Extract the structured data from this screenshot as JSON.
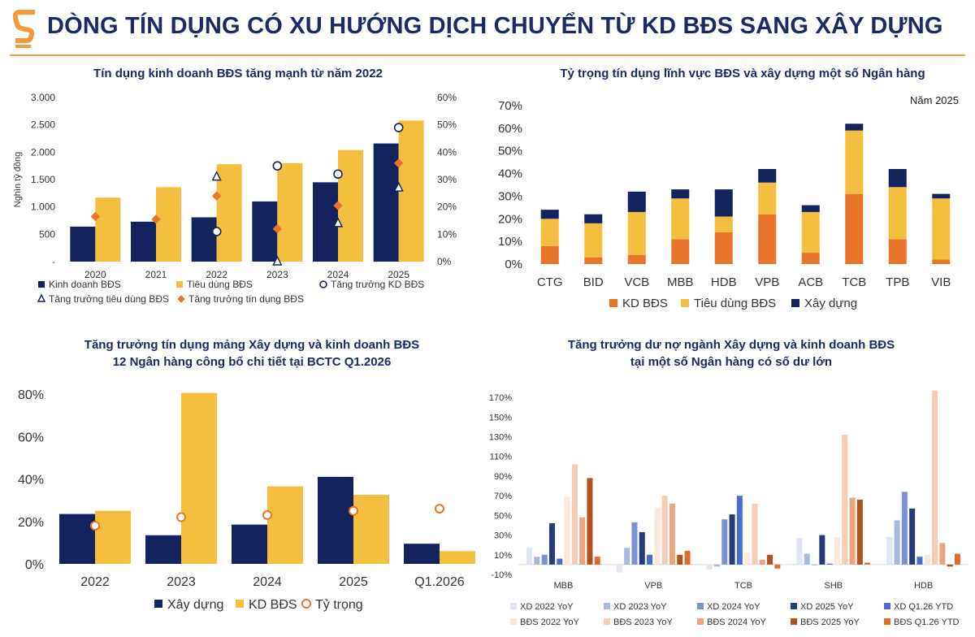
{
  "page": {
    "title": "DÒNG TÍN DỤNG CÓ XU HƯỚNG DỊCH CHUYỂN TỪ KD BĐS SANG XÂY DỰNG"
  },
  "colors": {
    "navy": "#13235e",
    "yellow": "#f4bf3f",
    "orange": "#e8742b",
    "accent": "#f39a3c"
  },
  "chart_data": [
    {
      "id": "c1",
      "type": "bar",
      "title": "Tín dụng kinh doanh BĐS tăng mạnh từ năm 2022",
      "ylabel": "Nghìn tỷ đồng",
      "categories": [
        "2020",
        "2021",
        "2022",
        "2023",
        "2024",
        "2025"
      ],
      "ylim": [
        0,
        3000
      ],
      "y_ticks": [
        "-",
        "500",
        "1.000",
        "1.500",
        "2.000",
        "2.500",
        "3.000"
      ],
      "y2lim": [
        0,
        60
      ],
      "y2_ticks": [
        "0%",
        "10%",
        "20%",
        "30%",
        "40%",
        "50%",
        "60%"
      ],
      "series": [
        {
          "name": "Kinh doanh BĐS",
          "kind": "bar",
          "axis": "left",
          "color": "#13235e",
          "values": [
            640,
            730,
            810,
            1100,
            1450,
            2160
          ]
        },
        {
          "name": "Tiêu dùng BĐS",
          "kind": "bar",
          "axis": "left",
          "color": "#f4bf3f",
          "values": [
            1170,
            1360,
            1780,
            1800,
            2040,
            2580
          ]
        },
        {
          "name": "Tăng trưởng KD BĐS",
          "kind": "marker",
          "shape": "circle",
          "axis": "right",
          "values": [
            null,
            null,
            11,
            35,
            32,
            49
          ]
        },
        {
          "name": "Tăng trưởng tiêu dùng BĐS",
          "kind": "marker",
          "shape": "triangle",
          "axis": "right",
          "values": [
            null,
            null,
            31,
            0,
            14,
            27
          ]
        },
        {
          "name": "Tăng trưởng tín dụng BĐS",
          "kind": "marker",
          "shape": "diamond",
          "axis": "right",
          "color": "#e8742b",
          "values": [
            16.5,
            15.5,
            24,
            12,
            20.5,
            36
          ]
        }
      ],
      "legend_position": "bottom"
    },
    {
      "id": "c2",
      "type": "bar",
      "stacked": true,
      "title": "Tỷ trọng tín dụng lĩnh vực BĐS và xây dựng một số Ngân hàng",
      "annotation": "Năm 2025",
      "categories": [
        "CTG",
        "BID",
        "VCB",
        "MBB",
        "HDB",
        "VPB",
        "ACB",
        "TCB",
        "TPB",
        "VIB"
      ],
      "ylim": [
        0,
        70
      ],
      "y_ticks": [
        "0%",
        "10%",
        "20%",
        "30%",
        "40%",
        "50%",
        "60%",
        "70%"
      ],
      "series": [
        {
          "name": "KD BĐS",
          "color": "#e8742b",
          "values": [
            8,
            3,
            4,
            11,
            14,
            22,
            5,
            31,
            11,
            2
          ]
        },
        {
          "name": "Tiêu dùng BĐS",
          "color": "#f4bf3f",
          "values": [
            12,
            15,
            19,
            18,
            7,
            14,
            18,
            28,
            23,
            27
          ]
        },
        {
          "name": "Xây dựng",
          "color": "#13235e",
          "values": [
            4,
            4,
            9,
            4,
            12,
            6,
            3,
            3,
            8,
            2
          ]
        }
      ],
      "legend_position": "bottom"
    },
    {
      "id": "c3",
      "type": "bar",
      "title": "Tăng trưởng tín dụng mảng Xây dựng và kinh doanh BĐS",
      "subtitle": "12 Ngân hàng công bố chi tiết tại BCTC Q1.2026",
      "categories": [
        "2022",
        "2023",
        "2024",
        "2025",
        "Q1.2026"
      ],
      "ylim": [
        0,
        80
      ],
      "y_ticks": [
        "0%",
        "20%",
        "40%",
        "60%",
        "80%"
      ],
      "series": [
        {
          "name": "Xây dựng",
          "kind": "bar",
          "color": "#13235e",
          "values": [
            23.5,
            13.5,
            18.5,
            41,
            9.5
          ]
        },
        {
          "name": "KD BĐS",
          "kind": "bar",
          "color": "#f4bf3f",
          "values": [
            25,
            80.5,
            36.5,
            32.5,
            6
          ]
        },
        {
          "name": "Tỷ trọng",
          "kind": "marker",
          "shape": "circle",
          "color": "#e8742b",
          "values": [
            18,
            22,
            23,
            25,
            26
          ]
        }
      ],
      "legend_position": "bottom"
    },
    {
      "id": "c4",
      "type": "bar",
      "title": "Tăng trưởng dư nợ ngành Xây dựng và kinh doanh BĐS",
      "subtitle": "tại một số Ngân hàng có số dư lớn",
      "categories": [
        "MBB",
        "VPB",
        "TCB",
        "SHB",
        "HDB"
      ],
      "ylim": [
        -10,
        180
      ],
      "y_ticks": [
        "-10%",
        "10%",
        "30%",
        "50%",
        "70%",
        "90%",
        "110%",
        "130%",
        "150%",
        "170%"
      ],
      "series": [
        {
          "name": "XD 2022 YoY",
          "color": "#dfe5f2",
          "values": [
            17,
            -8,
            -5,
            27,
            28
          ]
        },
        {
          "name": "XD 2023 YoY",
          "color": "#a9b8e0",
          "values": [
            8,
            17,
            -2,
            11,
            45
          ]
        },
        {
          "name": "XD 2024 YoY",
          "color": "#7a91d6",
          "values": [
            10,
            43,
            46,
            0,
            74
          ]
        },
        {
          "name": "XD 2025 YoY",
          "color": "#263b7c",
          "values": [
            42,
            33,
            51,
            30,
            57
          ]
        },
        {
          "name": "XD Q1.26 YTD",
          "color": "#4a6bd0",
          "values": [
            6,
            10,
            70,
            1,
            8
          ]
        },
        {
          "name": "BĐS 2022 YoY",
          "color": "#fbe8dc",
          "values": [
            69,
            58,
            12,
            28,
            10
          ]
        },
        {
          "name": "BĐS 2023 YoY",
          "color": "#f6cdb4",
          "values": [
            102,
            70,
            62,
            132,
            177
          ]
        },
        {
          "name": "BĐS 2024 YoY",
          "color": "#eda57f",
          "values": [
            48,
            62,
            5,
            68,
            22
          ]
        },
        {
          "name": "BĐS 2025 YoY",
          "color": "#b0531f",
          "values": [
            88,
            10,
            10,
            66,
            -2
          ]
        },
        {
          "name": "BĐS Q1.26 YTD",
          "color": "#e06b2c",
          "values": [
            8,
            14,
            -4,
            2,
            11
          ]
        }
      ],
      "legend_position": "bottom"
    }
  ]
}
